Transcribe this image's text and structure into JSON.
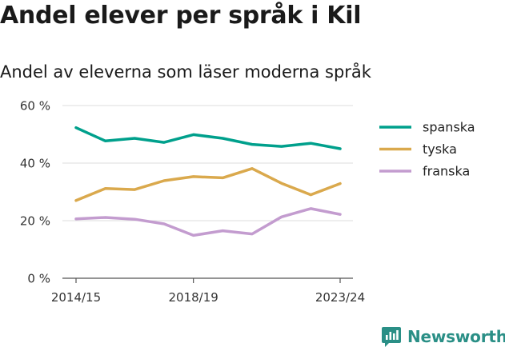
{
  "header": {
    "title": "Andel elever per språk i Kil",
    "subtitle": "Andel av eleverna som läser moderna språk"
  },
  "brand": {
    "name": "Newsworthy",
    "color": "#2a8f86"
  },
  "chart_data": {
    "type": "line",
    "x": [
      "2014/15",
      "2015/16",
      "2016/17",
      "2017/18",
      "2018/19",
      "2019/20",
      "2020/21",
      "2021/22",
      "2022/23",
      "2023/24"
    ],
    "x_ticks": [
      "2014/15",
      "2018/19",
      "2023/24"
    ],
    "ylim": [
      0,
      60
    ],
    "y_ticks": [
      0,
      20,
      40,
      60
    ],
    "y_tick_labels": [
      "0 %",
      "20 %",
      "40 %",
      "60 %"
    ],
    "grid": true,
    "legend_position": "right",
    "series": [
      {
        "name": "spanska",
        "color": "#00a08c",
        "values": [
          52.3,
          47.7,
          48.6,
          47.2,
          49.9,
          48.6,
          46.5,
          45.8,
          46.9,
          45.0
        ]
      },
      {
        "name": "tyska",
        "color": "#daa94d",
        "values": [
          27.0,
          31.2,
          30.8,
          33.9,
          35.3,
          34.9,
          38.1,
          33.0,
          29.0,
          32.9
        ]
      },
      {
        "name": "franska",
        "color": "#c39ccf",
        "values": [
          20.6,
          21.1,
          20.5,
          18.9,
          14.9,
          16.5,
          15.4,
          21.3,
          24.2,
          22.2
        ]
      }
    ]
  }
}
